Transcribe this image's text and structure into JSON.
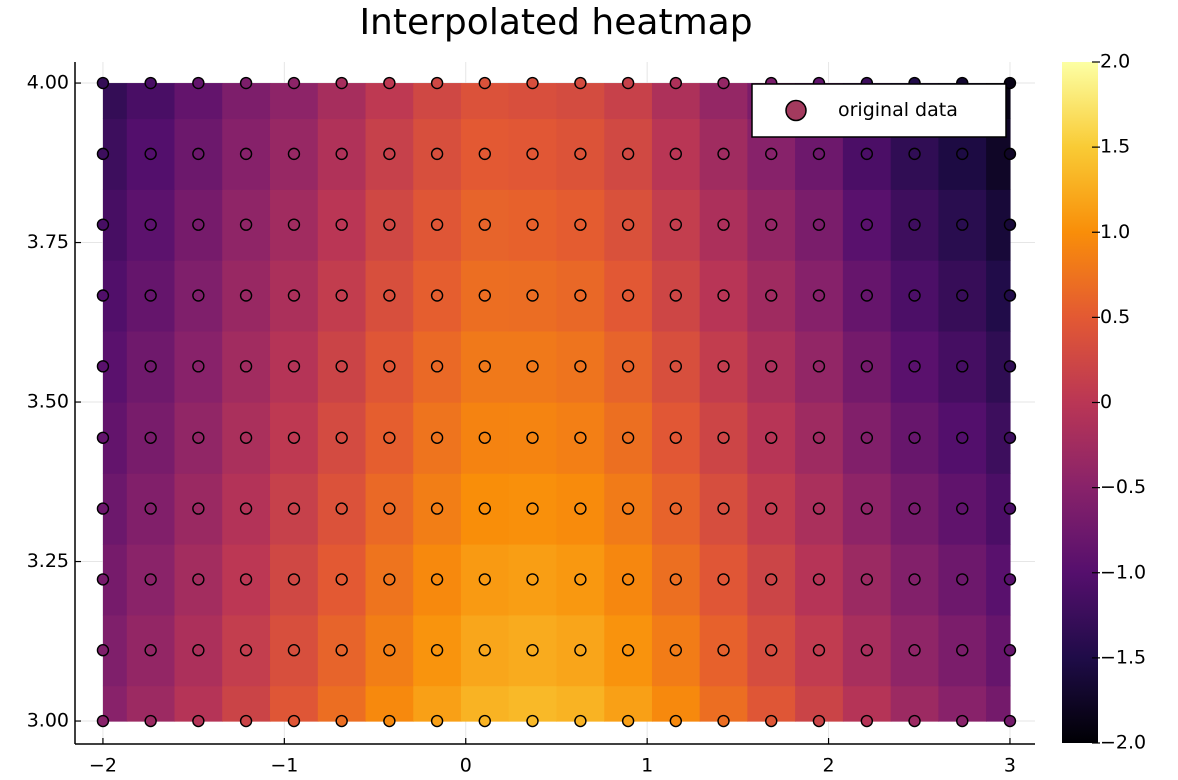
{
  "chart_data": {
    "type": "heatmap",
    "title": "Interpolated heatmap",
    "colormap": "inferno",
    "x": [
      -2,
      -1.737,
      -1.474,
      -1.211,
      -0.947,
      -0.684,
      -0.421,
      -0.158,
      0.105,
      0.368,
      0.632,
      0.895,
      1.158,
      1.421,
      1.684,
      1.947,
      2.211,
      2.474,
      2.737,
      3
    ],
    "y": [
      3,
      3.111,
      3.222,
      3.333,
      3.444,
      3.556,
      3.667,
      3.778,
      3.889,
      4
    ],
    "z": [
      [
        -0.5,
        -0.3,
        -0.05,
        0.2,
        0.45,
        0.7,
        0.95,
        1.15,
        1.3,
        1.35,
        1.3,
        1.15,
        0.95,
        0.7,
        0.45,
        0.2,
        -0.05,
        -0.3,
        -0.5,
        -0.7
      ],
      [
        -0.59,
        -0.39,
        -0.14,
        0.11,
        0.35,
        0.6,
        0.85,
        1.05,
        1.2,
        1.24,
        1.19,
        1.04,
        0.83,
        0.58,
        0.33,
        0.08,
        -0.18,
        -0.43,
        -0.63,
        -0.83
      ],
      [
        -0.68,
        -0.48,
        -0.23,
        0.02,
        0.25,
        0.5,
        0.75,
        0.95,
        1.1,
        1.13,
        1.08,
        0.93,
        0.71,
        0.46,
        0.21,
        -0.04,
        -0.31,
        -0.56,
        -0.76,
        -0.96
      ],
      [
        -0.77,
        -0.57,
        -0.32,
        -0.07,
        0.15,
        0.4,
        0.65,
        0.85,
        1.0,
        1.02,
        0.97,
        0.82,
        0.59,
        0.34,
        0.09,
        -0.16,
        -0.44,
        -0.69,
        -0.89,
        -1.09
      ],
      [
        -0.86,
        -0.66,
        -0.41,
        -0.16,
        0.05,
        0.3,
        0.55,
        0.75,
        0.9,
        0.91,
        0.86,
        0.71,
        0.47,
        0.22,
        -0.03,
        -0.28,
        -0.57,
        -0.82,
        -1.02,
        -1.22
      ],
      [
        -0.95,
        -0.75,
        -0.5,
        -0.25,
        -0.05,
        0.2,
        0.45,
        0.65,
        0.8,
        0.8,
        0.75,
        0.6,
        0.35,
        0.1,
        -0.15,
        -0.4,
        -0.7,
        -0.95,
        -1.15,
        -1.35
      ],
      [
        -1.04,
        -0.84,
        -0.59,
        -0.34,
        -0.15,
        0.1,
        0.35,
        0.55,
        0.7,
        0.69,
        0.64,
        0.49,
        0.23,
        -0.02,
        -0.27,
        -0.52,
        -0.83,
        -1.08,
        -1.28,
        -1.48
      ],
      [
        -1.13,
        -0.93,
        -0.68,
        -0.43,
        -0.25,
        0,
        0.25,
        0.45,
        0.6,
        0.58,
        0.53,
        0.38,
        0.11,
        -0.14,
        -0.39,
        -0.64,
        -0.96,
        -1.21,
        -1.41,
        -1.61
      ],
      [
        -1.22,
        -1.02,
        -0.77,
        -0.52,
        -0.35,
        -0.1,
        0.15,
        0.35,
        0.5,
        0.47,
        0.42,
        0.27,
        -0.01,
        -0.26,
        -0.51,
        -0.76,
        -1.09,
        -1.34,
        -1.54,
        -1.74
      ],
      [
        -1.31,
        -1.11,
        -0.86,
        -0.61,
        -0.45,
        -0.2,
        0.05,
        0.25,
        0.4,
        0.36,
        0.31,
        0.16,
        -0.13,
        -0.38,
        -0.63,
        -0.88,
        -1.22,
        -1.47,
        -1.67,
        -1.87
      ]
    ],
    "xlim": [
      -2.154,
      3.138
    ],
    "ylim": [
      2.964,
      4.033
    ],
    "xticks": [
      {
        "value": -2,
        "label": "−2"
      },
      {
        "value": -1,
        "label": "−1"
      },
      0,
      1,
      2,
      3
    ],
    "yticks": [
      {
        "value": 3,
        "label": "3.00"
      },
      {
        "value": 3.25,
        "label": "3.25"
      },
      {
        "value": 3.5,
        "label": "3.50"
      },
      {
        "value": 3.75,
        "label": "3.75"
      },
      {
        "value": 4,
        "label": "4.00"
      }
    ],
    "clim": [
      -2,
      2
    ],
    "cticks": [
      {
        "value": -2,
        "label": "−2.0"
      },
      {
        "value": -1.5,
        "label": "−1.5"
      },
      {
        "value": -1,
        "label": "−1.0"
      },
      {
        "value": -0.5,
        "label": "−0.5"
      },
      0,
      {
        "value": 0.5,
        "label": "0.5"
      },
      {
        "value": 1,
        "label": "1.0"
      },
      {
        "value": 1.5,
        "label": "1.5"
      },
      {
        "value": 2,
        "label": "2.0"
      }
    ],
    "grid": true,
    "legend": {
      "position": "topright",
      "entries": [
        "original data"
      ],
      "marker_color": "#a33a5e"
    }
  }
}
